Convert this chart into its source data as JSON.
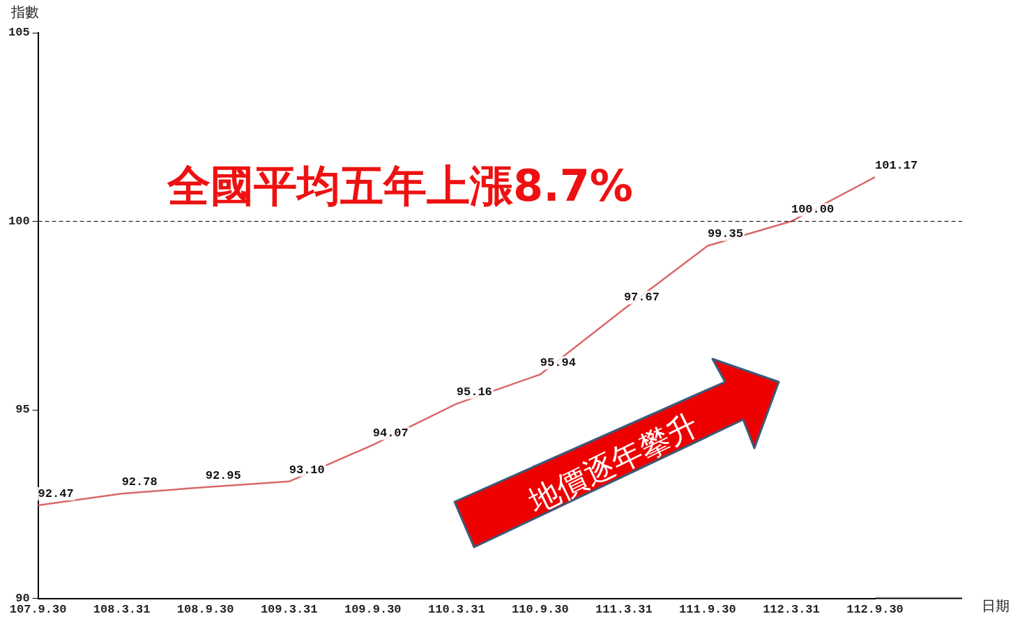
{
  "chart_data": {
    "type": "line",
    "ylabel": "指數",
    "xlabel": "日期",
    "categories": [
      "107.9.30",
      "108.3.31",
      "108.9.30",
      "109.3.31",
      "109.9.30",
      "110.3.31",
      "110.9.30",
      "111.3.31",
      "111.9.30",
      "112.3.31",
      "112.9.30"
    ],
    "values": [
      92.47,
      92.78,
      92.95,
      93.1,
      94.07,
      95.16,
      95.94,
      97.67,
      99.35,
      100.0,
      101.17
    ],
    "value_labels": [
      "92.47",
      "92.78",
      "92.95",
      "93.10",
      "94.07",
      "95.16",
      "95.94",
      "97.67",
      "99.35",
      "100.00",
      "101.17"
    ],
    "color": "#d9686a",
    "ylim": [
      90,
      105
    ],
    "yticks": [
      90,
      95,
      100,
      105
    ],
    "grid": false,
    "legend": false,
    "marker": "none",
    "line_style": "solid",
    "ref_lines": [
      {
        "axis": "y",
        "value": 100,
        "color": "#000000",
        "line_style": "dashed"
      }
    ],
    "annotations": [
      "全國平均五年上漲8.7%",
      "地價逐年攀升"
    ]
  }
}
